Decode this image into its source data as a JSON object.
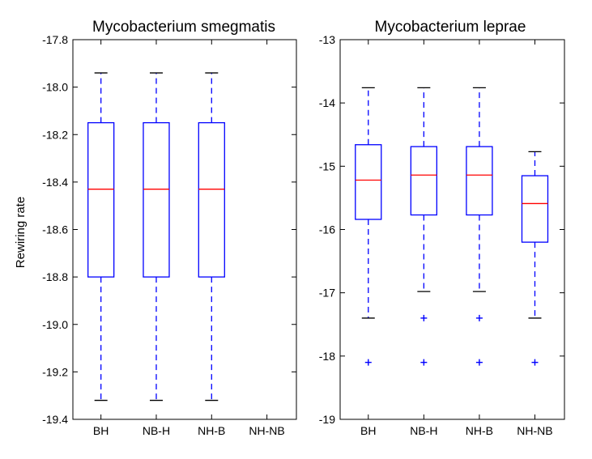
{
  "chart_data": [
    {
      "type": "box",
      "title": "Mycobacterium smegmatis",
      "ylabel": "Rewiring rate",
      "xlabel": "",
      "categories": [
        "BH",
        "NB-H",
        "NH-B",
        "NH-NB"
      ],
      "ylim": [
        -19.4,
        -17.8
      ],
      "yticks": [
        "-17.8",
        "-18.0",
        "-18.2",
        "-18.4",
        "-18.6",
        "-18.8",
        "-19.0",
        "-19.2",
        "-19.4"
      ],
      "boxes": [
        {
          "category": "BH",
          "whisker_low": -19.32,
          "q1": -18.8,
          "median": -18.43,
          "q3": -18.15,
          "whisker_high": -17.94,
          "outliers": []
        },
        {
          "category": "NB-H",
          "whisker_low": -19.32,
          "q1": -18.8,
          "median": -18.43,
          "q3": -18.15,
          "whisker_high": -17.94,
          "outliers": []
        },
        {
          "category": "NH-B",
          "whisker_low": -19.32,
          "q1": -18.8,
          "median": -18.43,
          "q3": -18.15,
          "whisker_high": -17.94,
          "outliers": []
        },
        {
          "category": "NH-NB",
          "empty": true
        }
      ],
      "colors": {
        "box": "#0000ff",
        "median": "#ff0000",
        "cap": "#000000",
        "outlier": "#0000ff"
      }
    },
    {
      "type": "box",
      "title": "Mycobacterium leprae",
      "ylabel": "",
      "xlabel": "",
      "categories": [
        "BH",
        "NB-H",
        "NH-B",
        "NH-NB"
      ],
      "ylim": [
        -19,
        -13
      ],
      "yticks": [
        "-13",
        "-14",
        "-15",
        "-16",
        "-17",
        "-18",
        "-19"
      ],
      "boxes": [
        {
          "category": "BH",
          "whisker_low": -17.4,
          "q1": -15.84,
          "median": -15.22,
          "q3": -14.66,
          "whisker_high": -13.76,
          "outliers": [
            -18.1
          ]
        },
        {
          "category": "NB-H",
          "whisker_low": -16.98,
          "q1": -15.77,
          "median": -15.14,
          "q3": -14.69,
          "whisker_high": -13.76,
          "outliers": [
            -17.4,
            -18.1
          ]
        },
        {
          "category": "NH-B",
          "whisker_low": -16.98,
          "q1": -15.77,
          "median": -15.14,
          "q3": -14.69,
          "whisker_high": -13.76,
          "outliers": [
            -17.4,
            -18.1
          ]
        },
        {
          "category": "NH-NB",
          "whisker_low": -17.4,
          "q1": -16.2,
          "median": -15.59,
          "q3": -15.15,
          "whisker_high": -14.77,
          "outliers": [
            -18.1
          ]
        }
      ],
      "colors": {
        "box": "#0000ff",
        "median": "#ff0000",
        "cap": "#000000",
        "outlier": "#0000ff"
      }
    }
  ]
}
